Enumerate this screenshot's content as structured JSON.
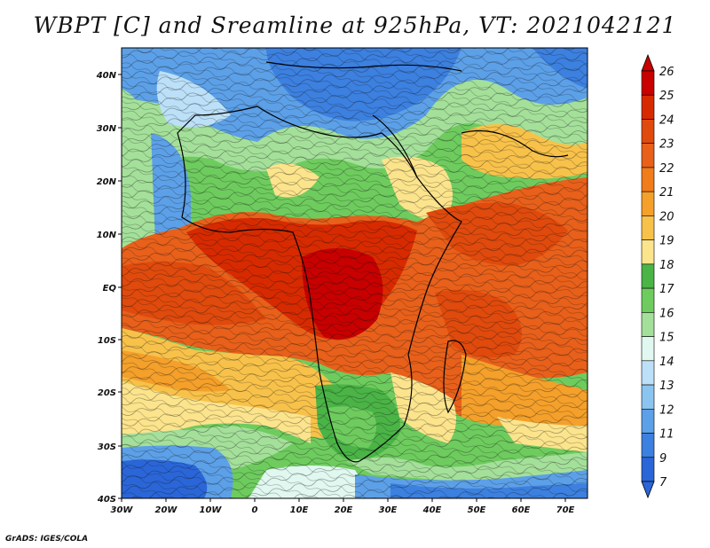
{
  "title": "WBPT [C] and Sreamline at 925hPa, VT: 2021042121",
  "credit": "GrADS: IGES/COLA",
  "lat_labels": [
    "40N",
    "30N",
    "20N",
    "10N",
    "EQ",
    "10S",
    "20S",
    "30S",
    "40S"
  ],
  "lon_labels": [
    "30W",
    "20W",
    "10W",
    "0",
    "10E",
    "20E",
    "30E",
    "40E",
    "50E",
    "60E",
    "70E"
  ],
  "colorbar": {
    "labels": [
      "26",
      "25",
      "24",
      "23",
      "22",
      "21",
      "20",
      "19",
      "18",
      "17",
      "16",
      "15",
      "14",
      "13",
      "12",
      "11",
      "9",
      "7"
    ],
    "colors": [
      "#c80000",
      "#d82a00",
      "#e04a0c",
      "#e8601a",
      "#f07c1a",
      "#f4a02a",
      "#f8c24a",
      "#fce48c",
      "#4ab446",
      "#6ecc5e",
      "#a4e09a",
      "#e0f8f0",
      "#bce0f8",
      "#8cc4f0",
      "#5ca0e8",
      "#3c80e0",
      "#2a66d8"
    ]
  }
}
